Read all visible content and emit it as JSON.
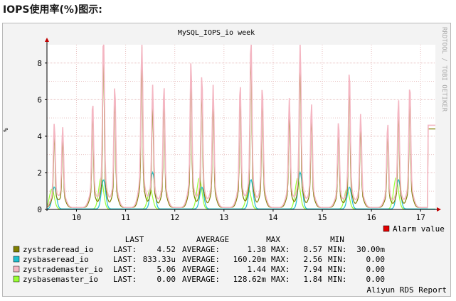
{
  "page_heading": "IOPS使用率(%)图示:",
  "chart_data": {
    "type": "line",
    "title": "MySQL_IOPS_io week",
    "ylabel": "%",
    "side_label": "RRDTOOL / TOBI OETIKER",
    "x_ticks": [
      "10",
      "11",
      "12",
      "13",
      "14",
      "15",
      "16",
      "17"
    ],
    "y_ticks": [
      "0",
      "2",
      "4",
      "6",
      "8"
    ],
    "xlim": [
      9.4,
      17.3
    ],
    "ylim": [
      0,
      9
    ],
    "grid": true,
    "legend_position": "bottom",
    "alarm_label": "Alarm value",
    "stats_headers": [
      "LAST",
      "AVERAGE",
      "MAX",
      "MIN"
    ],
    "series": [
      {
        "name": "zystraderead_io",
        "color": "#7f7f00",
        "last": "4.52",
        "average": "1.38",
        "max": "8.57",
        "min": "30.00m"
      },
      {
        "name": "zysbaseread_io",
        "color": "#1fbfcf",
        "last": "833.33u",
        "average": "160.20m",
        "max": "2.56",
        "min": "0.00"
      },
      {
        "name": "zystrademaster_io",
        "color": "#f4b6c2",
        "last": "5.06",
        "average": "1.44",
        "max": "7.94",
        "min": "0.00"
      },
      {
        "name": "zysbasemaster_io",
        "color": "#99ff33",
        "last": "0.00",
        "average": "128.62m",
        "max": "1.84",
        "min": "0.00"
      }
    ],
    "footer": "Aliyun RDS Report",
    "stat_prefixes": {
      "last": "LAST:",
      "average": "AVERAGE:",
      "max": "MAX:",
      "min": "MIN:"
    }
  },
  "colors": {
    "alarm": "#e00000",
    "axis": "#000000",
    "grid": "#e8c0c0",
    "plot_bg": "#ffffff"
  }
}
